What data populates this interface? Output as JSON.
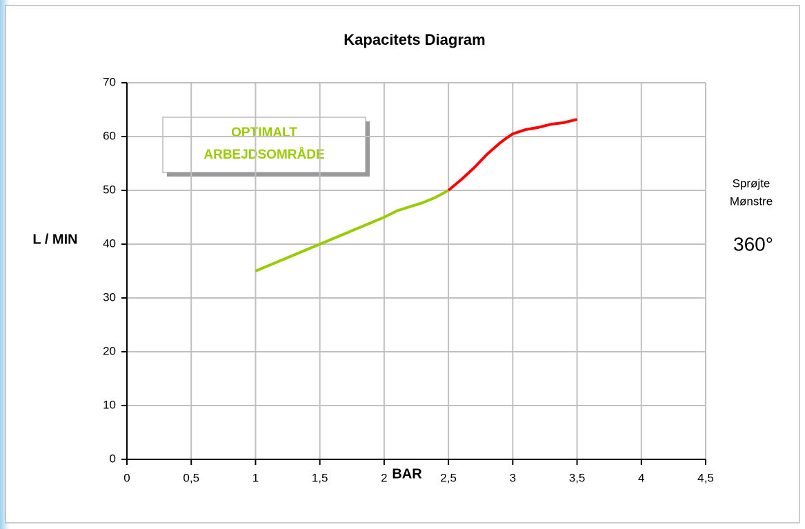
{
  "chart_data": {
    "type": "line",
    "title": "Kapacitets Diagram",
    "x_label": "BAR",
    "y_label": "L / MIN",
    "annotation": [
      "OPTIMALT",
      "ARBEJDSOMRÅDE"
    ],
    "side_label": [
      "Sprøjte",
      "Mønstre"
    ],
    "side_value": "360°",
    "series": [
      {
        "color": "#99cc00",
        "x": [
          1,
          1.5,
          2,
          2.1,
          2.3,
          2.4,
          2.5
        ],
        "values": [
          35,
          40,
          45,
          46.2,
          47.7,
          48.7,
          50
        ]
      },
      {
        "color": "#ff0000",
        "x": [
          2.5,
          2.6,
          2.7,
          2.8,
          2.9,
          2.95,
          3,
          3.1,
          3.2,
          3.3,
          3.4,
          3.5
        ],
        "values": [
          50,
          52,
          54.2,
          56.7,
          58.8,
          59.7,
          60.5,
          61.3,
          61.7,
          62.3,
          62.6,
          63.2
        ]
      }
    ],
    "xlim": [
      0,
      4.5
    ],
    "xticks": [
      0,
      {
        "value": 0.5,
        "label": "0,5"
      },
      1,
      {
        "value": 1.5,
        "label": "1,5"
      },
      2,
      {
        "value": 2.5,
        "label": "2,5"
      },
      3,
      {
        "value": 3.5,
        "label": "3,5"
      },
      4,
      {
        "value": 4.5,
        "label": "4,5"
      }
    ],
    "ylim": [
      0,
      70
    ],
    "yticks": [
      0,
      10,
      20,
      30,
      40,
      50,
      60,
      70
    ],
    "grid": true
  }
}
